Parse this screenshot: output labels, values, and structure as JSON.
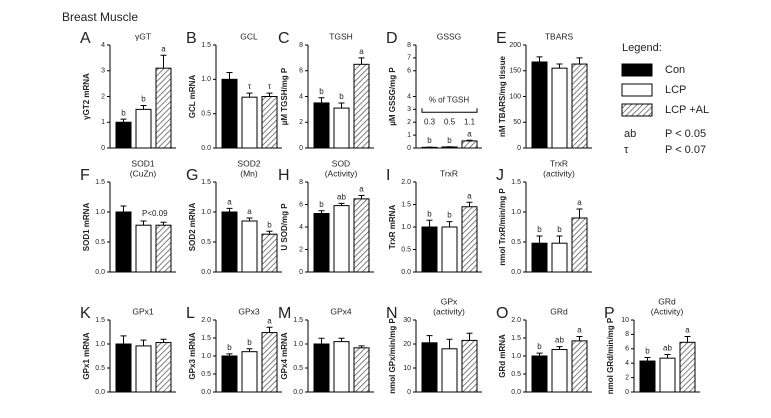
{
  "figure_title": "Breast Muscle",
  "legend": {
    "title": "Legend:",
    "series": [
      {
        "name": "Con",
        "color": "#000000",
        "hatched": false
      },
      {
        "name": "LCP",
        "color": "#ffffff",
        "hatched": false
      },
      {
        "name": "LCP +AL",
        "color": "#ffffff",
        "hatched": true
      }
    ],
    "notes": [
      {
        "symbol": "ab",
        "text": "P < 0.05"
      },
      {
        "symbol": "τ",
        "text": "P < 0.07"
      }
    ]
  },
  "chart_data": [
    {
      "type": "bar",
      "panel": "A",
      "title": [
        "γGT"
      ],
      "ylabel": "γGT2 mRNA",
      "ylim": [
        0,
        4
      ],
      "yticks": [
        0,
        1,
        2,
        3,
        4
      ],
      "values": [
        1.0,
        1.5,
        3.1
      ],
      "errors": [
        0.12,
        0.15,
        0.5
      ],
      "annotations": [
        "b",
        "b",
        "a"
      ]
    },
    {
      "type": "bar",
      "panel": "B",
      "title": [
        "GCL"
      ],
      "ylabel": "GCL mRNA",
      "ylim": [
        0,
        1.5
      ],
      "yticks": [
        {
          "value": 0,
          "label": "0.0"
        },
        0.5,
        {
          "value": 1,
          "label": "1.0"
        },
        1.5
      ],
      "values": [
        1.0,
        0.74,
        0.75
      ],
      "errors": [
        0.1,
        0.06,
        0.05
      ],
      "annotations": [
        null,
        "τ",
        "τ"
      ]
    },
    {
      "type": "bar",
      "panel": "C",
      "title": [
        "TGSH"
      ],
      "ylabel": "µM TGSH/mg P",
      "ylim": [
        0,
        8
      ],
      "yticks": [
        0,
        2,
        4,
        6,
        8
      ],
      "values": [
        3.5,
        3.1,
        6.5
      ],
      "errors": [
        0.4,
        0.4,
        0.5
      ],
      "annotations": [
        "b",
        "b",
        "a"
      ]
    },
    {
      "type": "bar",
      "panel": "D",
      "title": [
        "GSSG"
      ],
      "ylabel": "µM GSSG/mg P",
      "ylim": [
        0,
        8
      ],
      "yticks": [
        0,
        1,
        2,
        3,
        4,
        6,
        7,
        8
      ],
      "values": [
        0.05,
        0.08,
        0.55
      ],
      "errors": [
        0.02,
        0.02,
        0.05
      ],
      "annotations": [
        "b",
        "b",
        "a"
      ],
      "pct_title": "% of TGSH",
      "pct_labels": [
        "0.3",
        "0.5",
        "1.1"
      ]
    },
    {
      "type": "bar",
      "panel": "E",
      "title": [
        "TBARS"
      ],
      "ylabel": "nM TBARS/mg tissue",
      "ylim": [
        0,
        200
      ],
      "yticks": [
        0,
        50,
        100,
        150,
        200
      ],
      "values": [
        167,
        155,
        163
      ],
      "errors": [
        10,
        8,
        12
      ],
      "annotations": [
        null,
        null,
        null
      ]
    },
    {
      "type": "bar",
      "panel": "F",
      "title": [
        "SOD1",
        "(CuZn)"
      ],
      "ylabel": "SOD1 mRNA",
      "ylim": [
        0,
        1.5
      ],
      "yticks": [
        {
          "value": 0,
          "label": "0.0"
        },
        0.5,
        {
          "value": 1,
          "label": "1.0"
        },
        1.5
      ],
      "values": [
        1.0,
        0.78,
        0.78
      ],
      "errors": [
        0.1,
        0.07,
        0.05
      ],
      "annotations": [
        null,
        null,
        null
      ],
      "note": "P<0.09"
    },
    {
      "type": "bar",
      "panel": "G",
      "title": [
        "SOD2",
        "(Mn)"
      ],
      "ylabel": "SOD2 mRNA",
      "ylim": [
        0,
        1.5
      ],
      "yticks": [
        {
          "value": 0,
          "label": "0.0"
        },
        0.5,
        {
          "value": 1,
          "label": "1.0"
        },
        1.5
      ],
      "values": [
        1.0,
        0.85,
        0.63
      ],
      "errors": [
        0.06,
        0.05,
        0.05
      ],
      "annotations": [
        "a",
        "a",
        "b"
      ]
    },
    {
      "type": "bar",
      "panel": "H",
      "title": [
        "SOD",
        "(Activity)"
      ],
      "ylabel": "U SOD/mg P",
      "ylim": [
        0,
        8
      ],
      "yticks": [
        0,
        2,
        4,
        6,
        8
      ],
      "values": [
        5.2,
        5.9,
        6.5
      ],
      "errors": [
        0.25,
        0.2,
        0.3
      ],
      "annotations": [
        "b",
        "ab",
        "a"
      ]
    },
    {
      "type": "bar",
      "panel": "I",
      "title": [
        "TrxR"
      ],
      "ylabel": "TrxR mRNA",
      "ylim": [
        0,
        2
      ],
      "yticks": [
        {
          "value": 0,
          "label": "0.0"
        },
        0.5,
        {
          "value": 1,
          "label": "1.0"
        },
        1.5,
        {
          "value": 2,
          "label": "2.0"
        }
      ],
      "values": [
        1.0,
        1.0,
        1.45
      ],
      "errors": [
        0.15,
        0.12,
        0.1
      ],
      "annotations": [
        "b",
        "b",
        "a"
      ]
    },
    {
      "type": "bar",
      "panel": "J",
      "title": [
        "TrxR",
        "(activity)"
      ],
      "ylabel": "nmol TrxR/min/mg P",
      "ylim": [
        0,
        1.5
      ],
      "yticks": [
        {
          "value": 0,
          "label": "0.0"
        },
        0.5,
        {
          "value": 1,
          "label": "1.0"
        },
        1.5
      ],
      "values": [
        0.48,
        0.48,
        0.9
      ],
      "errors": [
        0.12,
        0.12,
        0.15
      ],
      "annotations": [
        "b",
        "b",
        "a"
      ]
    },
    {
      "type": "bar",
      "panel": "K",
      "title": [
        "GPx1"
      ],
      "ylabel": "GPx1 mRNA",
      "ylim": [
        0,
        1.5
      ],
      "yticks": [
        {
          "value": 0,
          "label": "0.0"
        },
        0.5,
        {
          "value": 1,
          "label": "1.0"
        },
        1.5
      ],
      "values": [
        1.0,
        0.96,
        1.03
      ],
      "errors": [
        0.17,
        0.12,
        0.07
      ],
      "annotations": [
        null,
        null,
        null
      ]
    },
    {
      "type": "bar",
      "panel": "L",
      "title": [
        "GPx3"
      ],
      "ylabel": "GPx3 mRNA",
      "ylim": [
        0,
        2
      ],
      "yticks": [
        {
          "value": 0,
          "label": "0.0"
        },
        0.5,
        {
          "value": 1,
          "label": "1.0"
        },
        1.5,
        {
          "value": 2,
          "label": "2.0"
        }
      ],
      "values": [
        1.0,
        1.12,
        1.65
      ],
      "errors": [
        0.06,
        0.08,
        0.15
      ],
      "annotations": [
        "b",
        "b",
        "a"
      ]
    },
    {
      "type": "bar",
      "panel": "M",
      "title": [
        "GPx4"
      ],
      "ylabel": "GPx4 mRNA",
      "ylim": [
        0,
        1.5
      ],
      "yticks": [
        {
          "value": 0,
          "label": "0.0"
        },
        0.5,
        {
          "value": 1,
          "label": "1.0"
        },
        1.5
      ],
      "values": [
        1.0,
        1.05,
        0.92
      ],
      "errors": [
        0.12,
        0.07,
        0.04
      ],
      "annotations": [
        null,
        null,
        null
      ]
    },
    {
      "type": "bar",
      "panel": "N",
      "title": [
        "GPx",
        "(activity)"
      ],
      "ylabel": "nmol GPx/min/mg P",
      "ylim": [
        0,
        30
      ],
      "yticks": [
        0,
        10,
        20,
        30
      ],
      "values": [
        20.5,
        18,
        21.5
      ],
      "errors": [
        3,
        4,
        3
      ],
      "annotations": [
        null,
        null,
        null
      ]
    },
    {
      "type": "bar",
      "panel": "O",
      "title": [
        "GRd"
      ],
      "ylabel": "GRd mRNA",
      "ylim": [
        0,
        2
      ],
      "yticks": [
        {
          "value": 0,
          "label": "0.0"
        },
        0.5,
        {
          "value": 1,
          "label": "1.0"
        },
        1.5,
        {
          "value": 2,
          "label": "2.0"
        }
      ],
      "values": [
        1.0,
        1.18,
        1.42
      ],
      "errors": [
        0.08,
        0.08,
        0.12
      ],
      "annotations": [
        "b",
        "ab",
        "a"
      ]
    },
    {
      "type": "bar",
      "panel": "P",
      "title": [
        "GRd",
        "(Activity)"
      ],
      "ylabel": "nmol GRd/min/mg P",
      "ylim": [
        0,
        10
      ],
      "yticks": [
        0,
        2,
        4,
        6,
        8,
        10
      ],
      "values": [
        4.3,
        4.7,
        6.9
      ],
      "errors": [
        0.5,
        0.5,
        0.8
      ],
      "annotations": [
        "b",
        "ab",
        "a"
      ]
    }
  ]
}
